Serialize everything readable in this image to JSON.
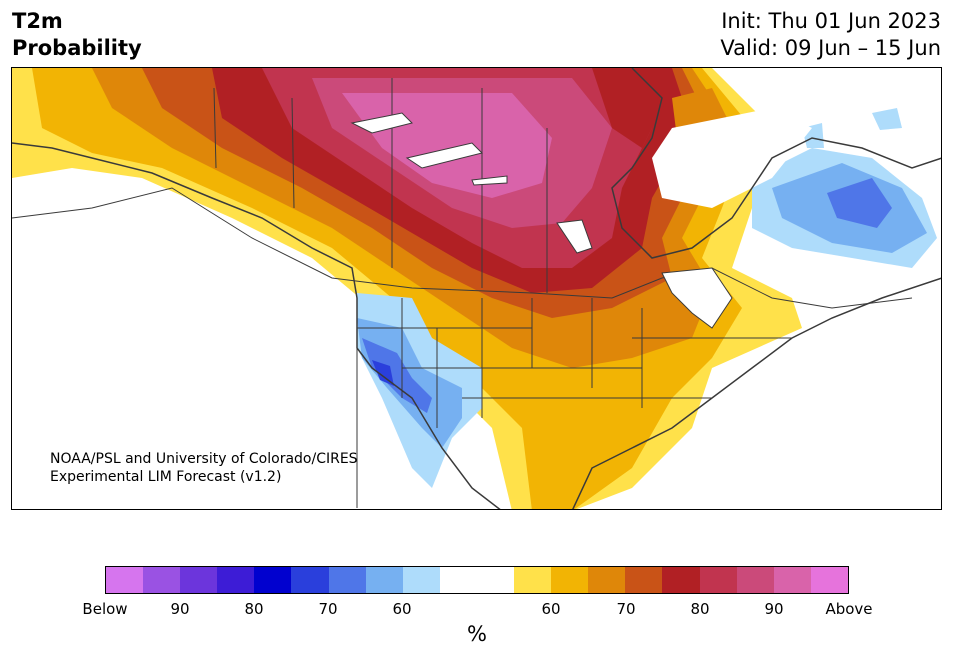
{
  "header": {
    "title_line1": "T2m",
    "title_line2": "Probability",
    "init": "Init: Thu 01 Jun 2023",
    "valid": "Valid: 09 Jun – 15 Jun"
  },
  "credit": {
    "line1": "NOAA/PSL and University of Colorado/CIRES",
    "line2": "Experimental LIM Forecast (v1.2)"
  },
  "colorbar": {
    "unit_label": "%",
    "colors": [
      "#d675ee",
      "#9a52e3",
      "#6c35dc",
      "#3d1cd6",
      "#0101cf",
      "#2a3fdc",
      "#4f76e8",
      "#76b0f1",
      "#aedcfb",
      "#ffffff",
      "#ffffff",
      "#ffe14a",
      "#f2b404",
      "#df8709",
      "#c95317",
      "#b12024",
      "#c1344f",
      "#cb4a7a",
      "#d963aa",
      "#e673dc"
    ],
    "ticks": [
      "Below",
      "90",
      "80",
      "70",
      "60",
      "60",
      "70",
      "80",
      "90",
      "Above"
    ]
  },
  "map_palette": {
    "below_60": "#aedcfb",
    "below_70": "#76b0f1",
    "below_80": "#4f76e8",
    "below_90": "#2a3fdc",
    "above_50": "#ffe14a",
    "above_60": "#f2b404",
    "above_65": "#df8709",
    "above_70": "#c95317",
    "above_75": "#b12024",
    "above_80": "#c1344f",
    "above_85": "#cb4a7a",
    "above_90": "#d963aa"
  }
}
